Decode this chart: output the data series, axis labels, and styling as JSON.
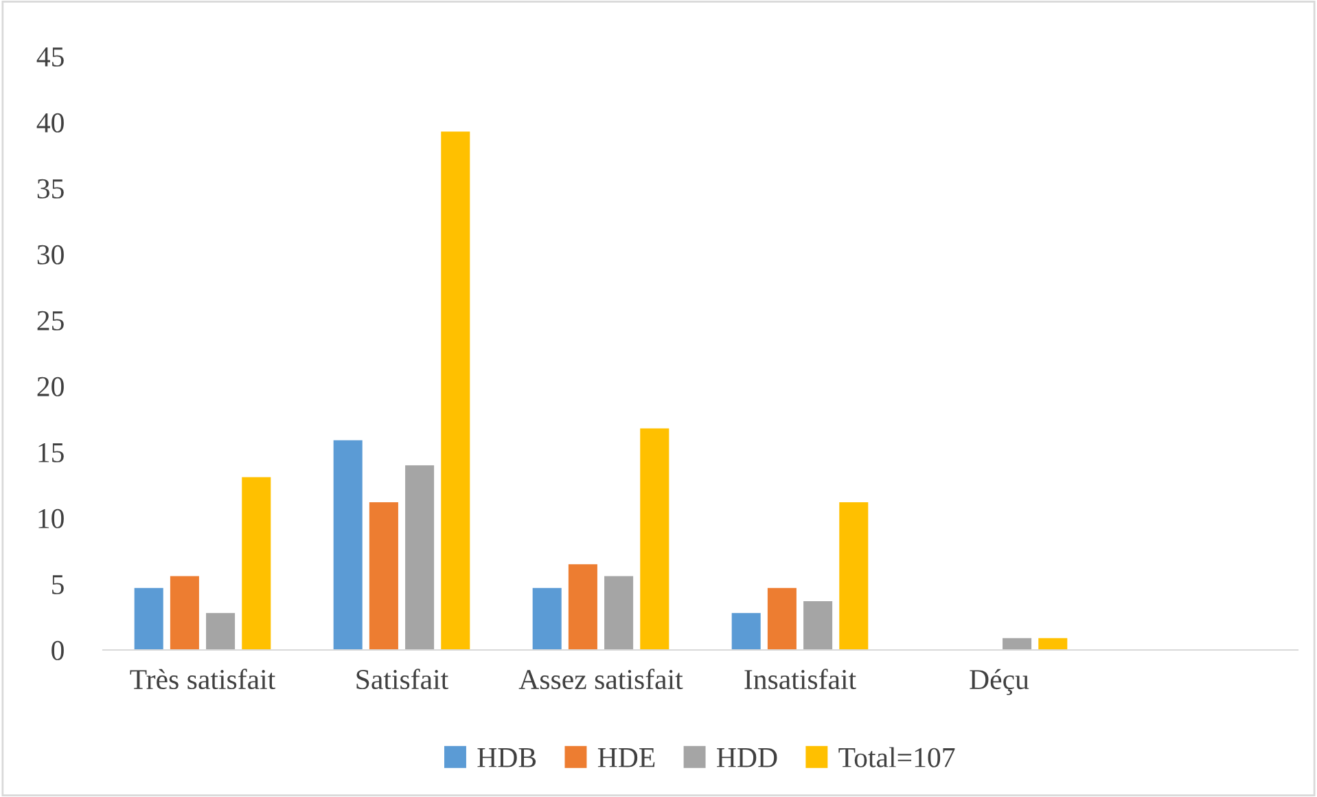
{
  "chart_data": {
    "type": "bar",
    "categories": [
      "Très satisfait",
      "Satisfait",
      "Assez satisfait",
      "Insatisfait",
      "Déçu",
      null
    ],
    "series": [
      {
        "name": "HDB",
        "color": "#5b9bd5",
        "values": [
          4.7,
          15.9,
          4.7,
          2.8,
          0,
          null
        ]
      },
      {
        "name": "HDE",
        "color": "#ed7d31",
        "values": [
          5.6,
          11.2,
          6.5,
          4.7,
          0,
          null
        ]
      },
      {
        "name": "HDD",
        "color": "#a5a5a5",
        "values": [
          2.8,
          14.0,
          5.6,
          3.7,
          0.9,
          null
        ]
      },
      {
        "name": "Total=107",
        "color": "#ffc000",
        "values": [
          13.1,
          39.3,
          16.8,
          11.2,
          0.9,
          null
        ]
      }
    ],
    "ylim": [
      0,
      45
    ],
    "yticks": [
      0,
      5,
      10,
      15,
      20,
      25,
      30,
      35,
      40,
      45
    ],
    "grid": false,
    "legend": "bottom"
  }
}
